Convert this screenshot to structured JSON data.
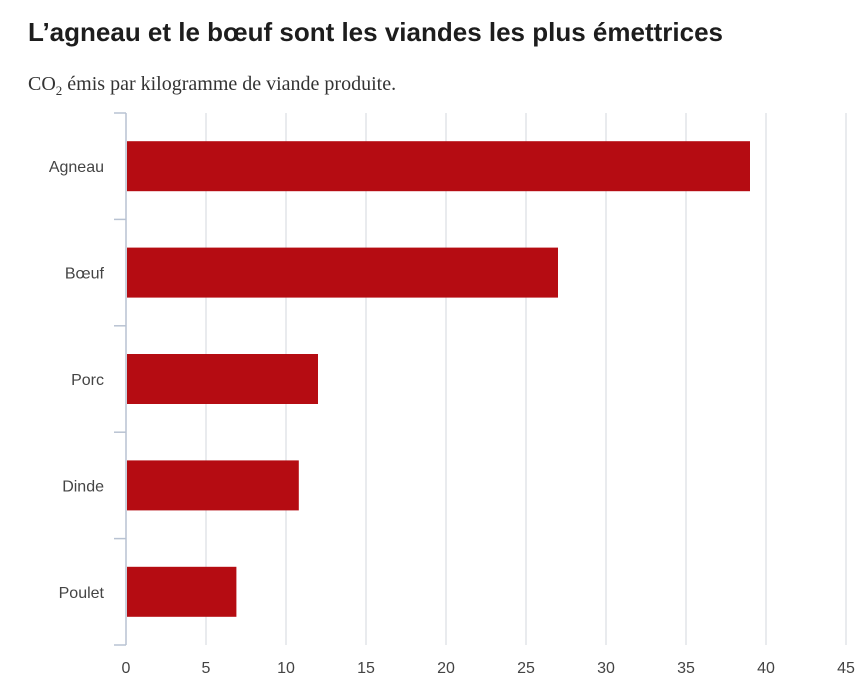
{
  "title": "L’agneau et le bœuf sont les viandes les plus émettrices",
  "subtitle": {
    "co": "CO",
    "sub": "2",
    "rest": " émis par kilogramme de viande produite."
  },
  "colors": {
    "bar": "#b50c12",
    "grid": "#d3d7de",
    "axis": "#b8c2d2",
    "text": "#444444"
  },
  "chart_data": {
    "type": "bar",
    "orientation": "horizontal",
    "categories": [
      "Agneau",
      "Bœuf",
      "Porc",
      "Dinde",
      "Poulet"
    ],
    "values": [
      39,
      27,
      12,
      10.8,
      6.9
    ],
    "xlim": [
      0,
      45
    ],
    "xticks": [
      0,
      5,
      10,
      15,
      20,
      25,
      30,
      35,
      40,
      45
    ],
    "grid": true,
    "legend": "none"
  }
}
